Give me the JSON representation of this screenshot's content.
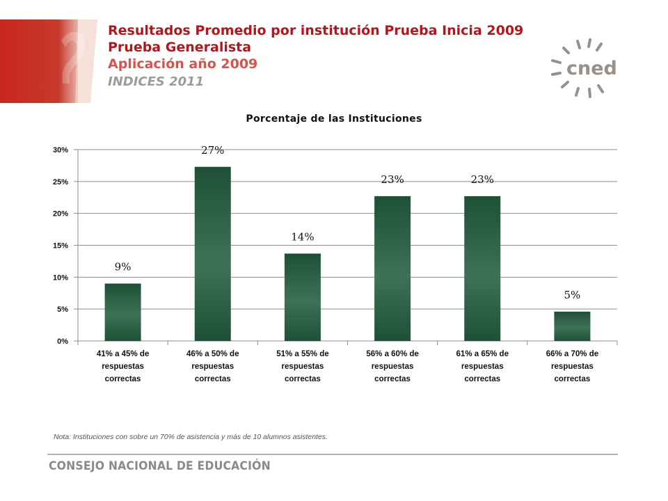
{
  "header": {
    "title_line1": "Resultados  Promedio por institución  Prueba Inicia 2009",
    "title_line2": "Prueba Generalista",
    "title_line3": "Aplicación  año 2009",
    "title_line4": "INDICES 2011"
  },
  "logo": {
    "text": "cned",
    "icon": "sunburst-icon"
  },
  "colors": {
    "accent_red": "#b8141b",
    "bar_dark": "#1e5038",
    "bar_light": "#3f7158",
    "axis": "#888888"
  },
  "chart_data": {
    "type": "bar",
    "title": "Porcentaje de las  Instituciones",
    "categories": [
      [
        "41% a 45% de",
        "respuestas",
        "correctas"
      ],
      [
        "46% a 50% de",
        "respuestas",
        "correctas"
      ],
      [
        "51% a 55% de",
        "respuestas",
        "correctas"
      ],
      [
        "56% a 60% de",
        "respuestas",
        "correctas"
      ],
      [
        "61% a 65% de",
        "respuestas",
        "correctas"
      ],
      [
        "66% a 70% de",
        "respuestas",
        "correctas"
      ]
    ],
    "values": [
      9,
      27.3,
      13.7,
      22.7,
      22.7,
      4.6
    ],
    "data_labels": [
      "9%",
      "27%",
      "14%",
      "23%",
      "23%",
      "5%"
    ],
    "ylim": [
      0,
      30
    ],
    "yticks": [
      0,
      5,
      10,
      15,
      20,
      25,
      30
    ],
    "ytick_labels": [
      "0%",
      "5%",
      "10%",
      "15%",
      "20%",
      "25%",
      "30%"
    ],
    "grid": true,
    "legend": "none"
  },
  "note": "Nota: Instituciones con sobre un 70% de asistencia y más de 10 alumnos asistentes.",
  "footer": "CONSEJO NACIONAL DE EDUCACIÓN"
}
